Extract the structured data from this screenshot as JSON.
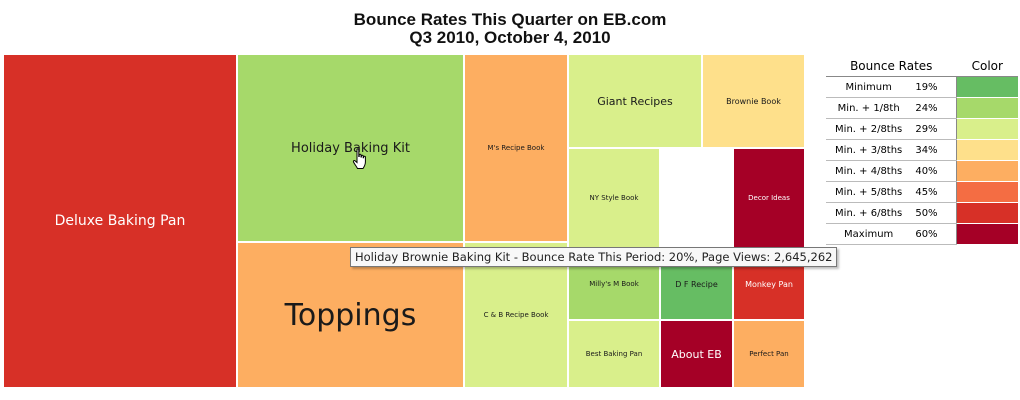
{
  "chart_data": {
    "type": "treemap",
    "title": "Bounce Rates This Quarter on EB.com",
    "subtitle": "Q3 2010, October 4, 2010",
    "tiles": [
      {
        "name": "Deluxe Baking Pan",
        "color": "#d73027",
        "label_color": "#ffffff"
      },
      {
        "name": "Holiday Baking Kit",
        "color": "#a6d96a",
        "label_color": "#1a1a1a"
      },
      {
        "name": "M's Recipe Book",
        "color": "#fdae61",
        "label_color": "#1a1a1a"
      },
      {
        "name": "Giant Recipes",
        "color": "#d9ef8b",
        "label_color": "#1a1a1a"
      },
      {
        "name": "Brownie Book",
        "color": "#fee08b",
        "label_color": "#1a1a1a"
      },
      {
        "name": "NY Style Book",
        "color": "#d9ef8b",
        "label_color": "#1a1a1a"
      },
      {
        "name": "Decor Ideas",
        "color": "#a50026",
        "label_color": "#ffffff"
      },
      {
        "name": "Toppings",
        "color": "#fdae61",
        "label_color": "#1a1a1a"
      },
      {
        "name": "C & B Recipe Book",
        "color": "#d9ef8b",
        "label_color": "#1a1a1a"
      },
      {
        "name": "Milly's M Book",
        "color": "#a6d96a",
        "label_color": "#1a1a1a"
      },
      {
        "name": "D F Recipe",
        "color": "#66bd63",
        "label_color": "#1a1a1a"
      },
      {
        "name": "Monkey Pan",
        "color": "#d73027",
        "label_color": "#ffffff"
      },
      {
        "name": "Best Baking Pan",
        "color": "#d9ef8b",
        "label_color": "#1a1a1a"
      },
      {
        "name": "About EB",
        "color": "#a50026",
        "label_color": "#ffffff"
      },
      {
        "name": "Perfect Pan",
        "color": "#fdae61",
        "label_color": "#1a1a1a"
      }
    ],
    "legend": {
      "header_rates": "Bounce Rates",
      "header_color": "Color",
      "rows": [
        {
          "label": "Minimum",
          "value": "19%",
          "color": "#66bd63"
        },
        {
          "label": "Min. + 1/8th",
          "value": "24%",
          "color": "#a6d96a"
        },
        {
          "label": "Min. + 2/8ths",
          "value": "29%",
          "color": "#d9ef8b"
        },
        {
          "label": "Min. + 3/8ths",
          "value": "34%",
          "color": "#fee08b"
        },
        {
          "label": "Min. + 4/8ths",
          "value": "40%",
          "color": "#fdae61"
        },
        {
          "label": "Min. + 5/8ths",
          "value": "45%",
          "color": "#f46d43"
        },
        {
          "label": "Min. + 6/8ths",
          "value": "50%",
          "color": "#d73027"
        },
        {
          "label": "Maximum",
          "value": "60%",
          "color": "#a50026"
        }
      ]
    },
    "tooltip": "Holiday Brownie Baking Kit - Bounce Rate This Period: 20%, Page Views: 2,645,262"
  }
}
